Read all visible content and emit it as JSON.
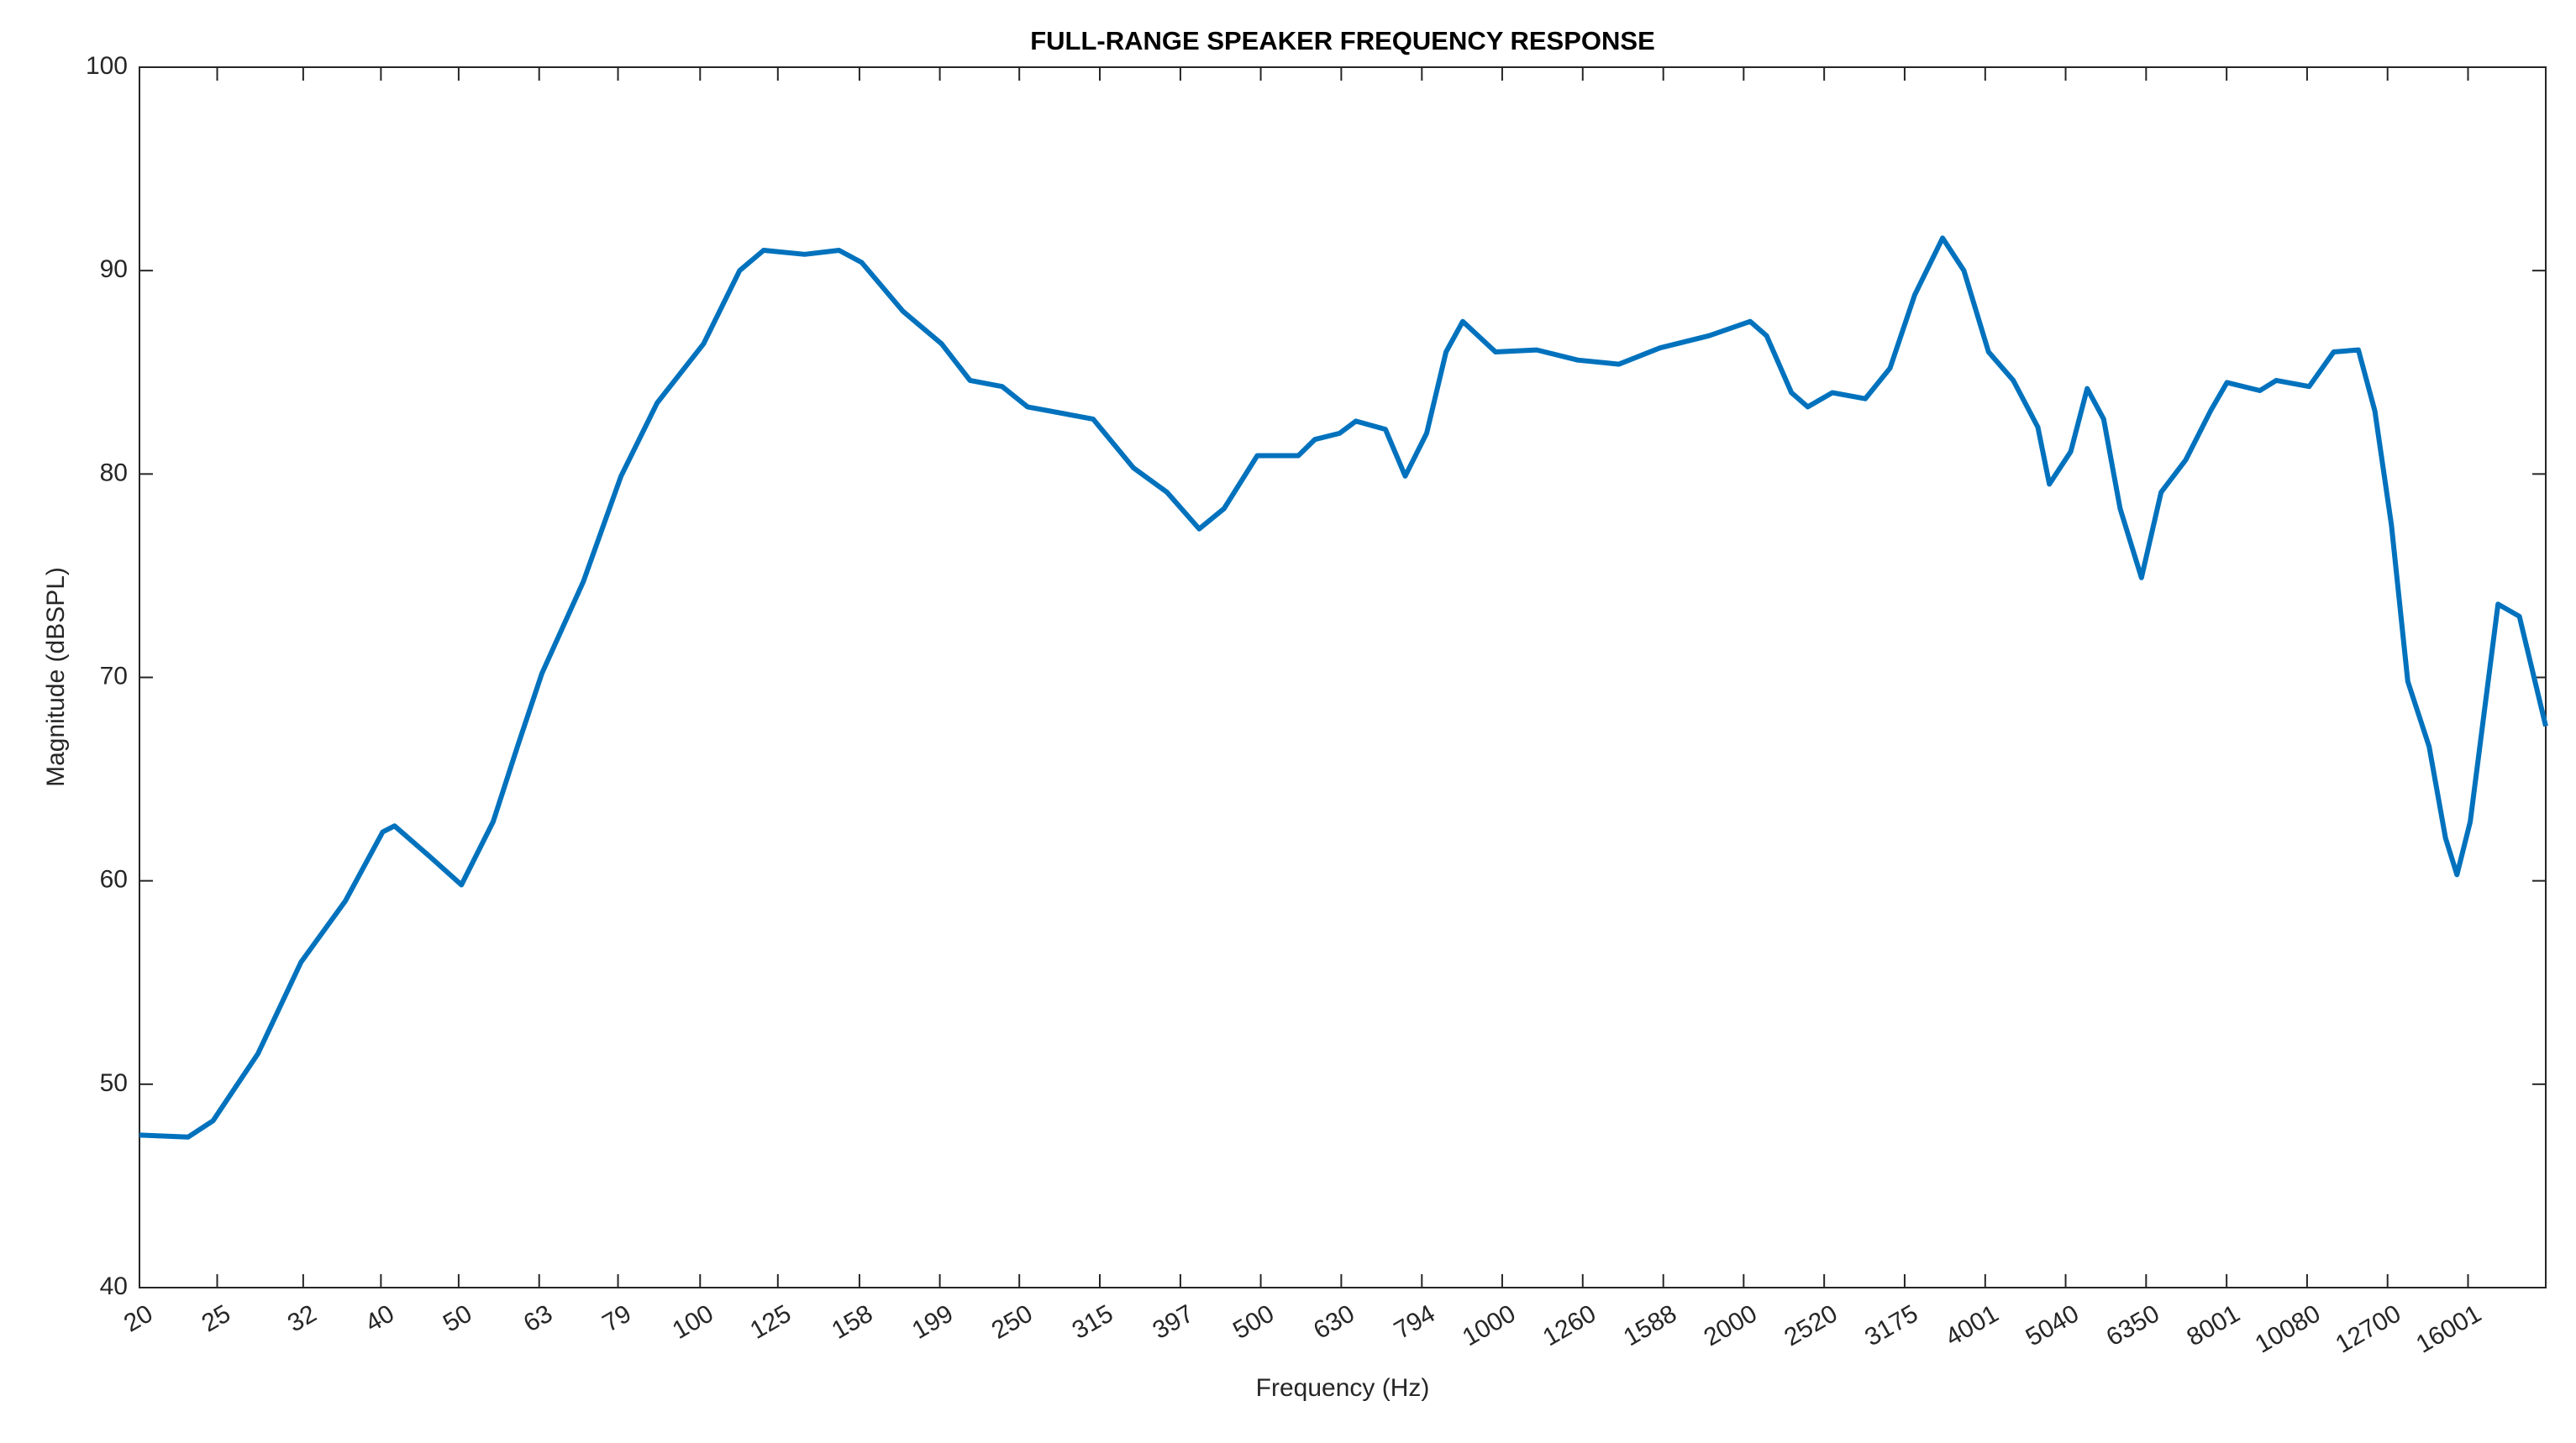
{
  "chart_data": {
    "type": "line",
    "title": "FULL-RANGE SPEAKER FREQUENCY RESPONSE",
    "x_label": "Frequency (Hz)",
    "y_label": "Magnitude (dBSPL)",
    "x_scale": "log",
    "xlim": [
      20,
      20000
    ],
    "ylim": [
      40,
      100
    ],
    "xticks": [
      20,
      25,
      32,
      40,
      50,
      63,
      79,
      100,
      125,
      158,
      199,
      250,
      315,
      397,
      500,
      630,
      794,
      1000,
      1260,
      1588,
      2000,
      2520,
      3175,
      4001,
      5040,
      6350,
      8001,
      10080,
      12700,
      16001
    ],
    "yticks": [
      40,
      50,
      60,
      70,
      80,
      90,
      100
    ],
    "grid": false,
    "series": [
      {
        "color": "#0072bd",
        "x": [
          20,
          23,
          24.7,
          28.1,
          31.8,
          36.1,
          40.2,
          41.6,
          45.7,
          50.4,
          55.2,
          59.2,
          63.5,
          71.5,
          79.7,
          88.4,
          101,
          112,
          120,
          135,
          149,
          159,
          179,
          200,
          217,
          238,
          256,
          309,
          347,
          382,
          419,
          450,
          495,
          557,
          584,
          627,
          657,
          715,
          757,
          805,
          851,
          893,
          981,
          1104,
          1242,
          1398,
          1573,
          1811,
          2038,
          2136,
          2294,
          2404,
          2580,
          2836,
          3044,
          3268,
          3540,
          3764,
          4040,
          4336,
          4654,
          4810,
          5114,
          5362,
          5622,
          5894,
          6266,
          6630,
          7116,
          7640,
          8010,
          8802,
          9228,
          10140,
          10880,
          11680,
          12246,
          12840,
          13460,
          14310,
          15000,
          15500,
          16100,
          17440,
          18540,
          20000
        ],
        "values": [
          47.5,
          47.4,
          48.2,
          51.5,
          56,
          59,
          62.4,
          62.7,
          61.3,
          59.8,
          62.9,
          66.6,
          70.2,
          74.7,
          79.9,
          83.5,
          86.4,
          90,
          91,
          90.8,
          91,
          90.4,
          88,
          86.4,
          84.6,
          84.3,
          83.3,
          82.7,
          80.3,
          79.1,
          77.3,
          78.3,
          80.9,
          80.9,
          81.7,
          82,
          82.6,
          82.2,
          79.9,
          82,
          86,
          87.5,
          86,
          86.1,
          85.6,
          85.4,
          86.2,
          86.8,
          87.5,
          86.8,
          84,
          83.3,
          84,
          83.7,
          85.2,
          88.8,
          91.6,
          90,
          86,
          84.6,
          82.3,
          79.5,
          81.1,
          84.2,
          82.7,
          78.3,
          74.9,
          79.1,
          80.7,
          83.1,
          84.5,
          84.1,
          84.6,
          84.3,
          86,
          86.1,
          83.1,
          77.5,
          69.8,
          66.6,
          62.1,
          60.3,
          62.9,
          73.6,
          73,
          67.6
        ]
      }
    ]
  }
}
